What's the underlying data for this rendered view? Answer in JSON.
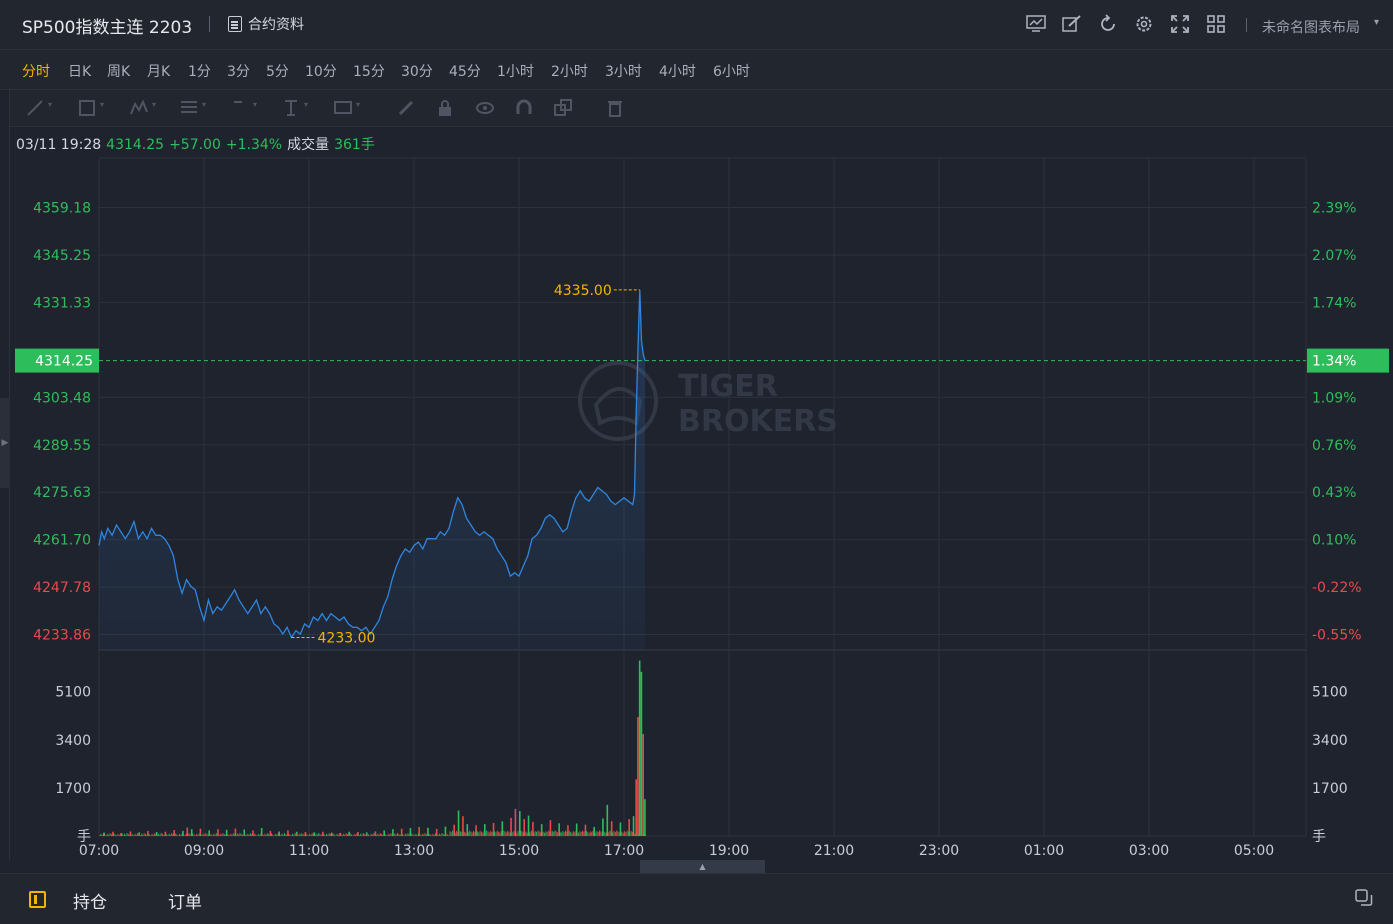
{
  "header": {
    "title": "SP500指数主连 2203",
    "contract_info": "合约资料",
    "layout_name": "未命名图表布局",
    "icons": [
      "indicator-icon",
      "draw-edit-icon",
      "refresh-icon",
      "settings-icon",
      "fullscreen-icon",
      "grid-layout-icon"
    ]
  },
  "periods": [
    "分时",
    "日K",
    "周K",
    "月K",
    "1分",
    "3分",
    "5分",
    "10分",
    "15分",
    "30分",
    "45分",
    "1小时",
    "2小时",
    "3小时",
    "4小时",
    "6小时"
  ],
  "active_period": "分时",
  "draw_tools": [
    "line-tool-icon",
    "rect-tool-icon",
    "pattern-tool-icon",
    "fib-tool-icon",
    "arrow-tool-icon",
    "text-tool-icon",
    "measure-tool-icon",
    "pencil-icon",
    "lock-icon",
    "eye-icon",
    "magnet-icon",
    "copy-layer-icon",
    "trash-icon"
  ],
  "info": {
    "datetime": "03/11 19:28",
    "price": "4314.25",
    "change": "+57.00",
    "change_pct": "+1.34%",
    "volume_label": "成交量",
    "volume": "361手"
  },
  "bottom": {
    "tab_positions": "持仓",
    "tab_orders": "订单"
  },
  "colors": {
    "up": "#2ebd5b",
    "down": "#e84a4a",
    "line": "#2f86e0",
    "marker": "#f4b400",
    "background": "#1f232e"
  },
  "chart_data": {
    "type": "line",
    "y_left_ticks": [
      "4359.18",
      "4345.25",
      "4331.33",
      "4303.48",
      "4289.55",
      "4275.63",
      "4261.70",
      "4247.78",
      "4233.86"
    ],
    "y_right_ticks": [
      "2.39%",
      "2.07%",
      "1.74%",
      "1.09%",
      "0.76%",
      "0.43%",
      "0.10%",
      "-0.22%",
      "-0.55%"
    ],
    "ylim": [
      4229.33,
      4373.11
    ],
    "prev_close": 4257.25,
    "x_ticks": [
      "07:00",
      "09:00",
      "11:00",
      "13:00",
      "15:00",
      "17:00",
      "19:00",
      "21:00",
      "23:00",
      "01:00",
      "03:00",
      "05:00"
    ],
    "last_price_label": "4314.25",
    "last_pct_label": "1.34%",
    "high_label": "4335.00",
    "low_label": "4233.00",
    "price_series": [
      [
        0,
        4260
      ],
      [
        3,
        4264
      ],
      [
        6,
        4262
      ],
      [
        10,
        4265
      ],
      [
        15,
        4263
      ],
      [
        20,
        4266
      ],
      [
        25,
        4264
      ],
      [
        30,
        4262
      ],
      [
        35,
        4264
      ],
      [
        40,
        4267
      ],
      [
        45,
        4262
      ],
      [
        50,
        4264
      ],
      [
        55,
        4262
      ],
      [
        60,
        4265
      ],
      [
        65,
        4263
      ],
      [
        70,
        4263
      ],
      [
        75,
        4262
      ],
      [
        80,
        4260
      ],
      [
        85,
        4257
      ],
      [
        90,
        4250
      ],
      [
        95,
        4246
      ],
      [
        100,
        4250
      ],
      [
        105,
        4248
      ],
      [
        110,
        4247
      ],
      [
        115,
        4242
      ],
      [
        120,
        4238
      ],
      [
        125,
        4244
      ],
      [
        130,
        4240
      ],
      [
        135,
        4242
      ],
      [
        140,
        4241
      ],
      [
        145,
        4243
      ],
      [
        150,
        4245
      ],
      [
        155,
        4247
      ],
      [
        160,
        4244
      ],
      [
        165,
        4242
      ],
      [
        170,
        4240
      ],
      [
        175,
        4242
      ],
      [
        180,
        4244
      ],
      [
        185,
        4240
      ],
      [
        190,
        4242
      ],
      [
        195,
        4240
      ],
      [
        200,
        4237
      ],
      [
        205,
        4236
      ],
      [
        210,
        4234
      ],
      [
        215,
        4236
      ],
      [
        220,
        4233
      ],
      [
        225,
        4235
      ],
      [
        230,
        4234
      ],
      [
        235,
        4237
      ],
      [
        240,
        4236
      ],
      [
        245,
        4239
      ],
      [
        250,
        4238
      ],
      [
        255,
        4240
      ],
      [
        260,
        4238
      ],
      [
        265,
        4240
      ],
      [
        270,
        4239
      ],
      [
        275,
        4238
      ],
      [
        280,
        4239
      ],
      [
        285,
        4237
      ],
      [
        290,
        4236
      ],
      [
        295,
        4236
      ],
      [
        300,
        4235
      ],
      [
        305,
        4236
      ],
      [
        310,
        4234
      ],
      [
        315,
        4236
      ],
      [
        320,
        4238
      ],
      [
        325,
        4242
      ],
      [
        330,
        4245
      ],
      [
        335,
        4250
      ],
      [
        340,
        4254
      ],
      [
        345,
        4257
      ],
      [
        350,
        4259
      ],
      [
        355,
        4258
      ],
      [
        360,
        4260
      ],
      [
        365,
        4261
      ],
      [
        370,
        4259
      ],
      [
        375,
        4262
      ],
      [
        380,
        4262
      ],
      [
        385,
        4262
      ],
      [
        390,
        4264
      ],
      [
        395,
        4263
      ],
      [
        400,
        4265
      ],
      [
        405,
        4270
      ],
      [
        410,
        4274
      ],
      [
        415,
        4272
      ],
      [
        420,
        4268
      ],
      [
        425,
        4266
      ],
      [
        430,
        4264
      ],
      [
        435,
        4263
      ],
      [
        440,
        4264
      ],
      [
        445,
        4263
      ],
      [
        450,
        4262
      ],
      [
        455,
        4259
      ],
      [
        460,
        4257
      ],
      [
        465,
        4255
      ],
      [
        470,
        4251
      ],
      [
        475,
        4252
      ],
      [
        480,
        4251
      ],
      [
        485,
        4254
      ],
      [
        490,
        4257
      ],
      [
        495,
        4262
      ],
      [
        500,
        4263
      ],
      [
        505,
        4265
      ],
      [
        510,
        4268
      ],
      [
        515,
        4269
      ],
      [
        520,
        4268
      ],
      [
        525,
        4266
      ],
      [
        530,
        4264
      ],
      [
        535,
        4265
      ],
      [
        540,
        4270
      ],
      [
        545,
        4274
      ],
      [
        550,
        4276
      ],
      [
        555,
        4274
      ],
      [
        560,
        4273
      ],
      [
        565,
        4275
      ],
      [
        570,
        4277
      ],
      [
        575,
        4276
      ],
      [
        580,
        4275
      ],
      [
        585,
        4273
      ],
      [
        590,
        4272
      ],
      [
        595,
        4273
      ],
      [
        600,
        4274
      ],
      [
        605,
        4273
      ],
      [
        610,
        4272
      ],
      [
        612,
        4275
      ],
      [
        614,
        4300
      ],
      [
        616,
        4318
      ],
      [
        618,
        4335
      ],
      [
        620,
        4320
      ],
      [
        622,
        4316
      ],
      [
        624,
        4314.25
      ]
    ],
    "volume_axis_ticks": [
      "5100",
      "3400",
      "1700"
    ],
    "volume_unit": "手",
    "volume_ylim": [
      0,
      6500
    ],
    "volume_series": [
      [
        5,
        120,
        "up"
      ],
      [
        15,
        150,
        "down"
      ],
      [
        25,
        100,
        "up"
      ],
      [
        35,
        160,
        "down"
      ],
      [
        45,
        130,
        "up"
      ],
      [
        55,
        180,
        "down"
      ],
      [
        65,
        140,
        "up"
      ],
      [
        75,
        150,
        "down"
      ],
      [
        85,
        210,
        "down"
      ],
      [
        95,
        180,
        "up"
      ],
      [
        100,
        300,
        "down"
      ],
      [
        105,
        240,
        "up"
      ],
      [
        115,
        260,
        "down"
      ],
      [
        125,
        200,
        "up"
      ],
      [
        135,
        240,
        "down"
      ],
      [
        145,
        220,
        "up"
      ],
      [
        155,
        260,
        "down"
      ],
      [
        165,
        230,
        "up"
      ],
      [
        175,
        200,
        "down"
      ],
      [
        185,
        280,
        "up"
      ],
      [
        195,
        180,
        "down"
      ],
      [
        205,
        160,
        "up"
      ],
      [
        215,
        200,
        "down"
      ],
      [
        225,
        150,
        "up"
      ],
      [
        235,
        140,
        "down"
      ],
      [
        245,
        130,
        "up"
      ],
      [
        255,
        150,
        "down"
      ],
      [
        265,
        120,
        "up"
      ],
      [
        275,
        110,
        "down"
      ],
      [
        285,
        150,
        "up"
      ],
      [
        295,
        140,
        "down"
      ],
      [
        305,
        130,
        "up"
      ],
      [
        315,
        160,
        "down"
      ],
      [
        325,
        200,
        "up"
      ],
      [
        335,
        240,
        "up"
      ],
      [
        345,
        260,
        "down"
      ],
      [
        355,
        280,
        "up"
      ],
      [
        365,
        320,
        "down"
      ],
      [
        375,
        290,
        "up"
      ],
      [
        385,
        250,
        "down"
      ],
      [
        395,
        330,
        "up"
      ],
      [
        405,
        400,
        "down"
      ],
      [
        410,
        900,
        "up"
      ],
      [
        415,
        700,
        "down"
      ],
      [
        420,
        420,
        "up"
      ],
      [
        430,
        380,
        "down"
      ],
      [
        440,
        420,
        "up"
      ],
      [
        450,
        460,
        "down"
      ],
      [
        460,
        520,
        "up"
      ],
      [
        470,
        640,
        "down"
      ],
      [
        475,
        960,
        "down"
      ],
      [
        480,
        880,
        "up"
      ],
      [
        485,
        600,
        "down"
      ],
      [
        490,
        720,
        "up"
      ],
      [
        495,
        500,
        "down"
      ],
      [
        505,
        420,
        "up"
      ],
      [
        515,
        560,
        "down"
      ],
      [
        525,
        450,
        "up"
      ],
      [
        535,
        380,
        "down"
      ],
      [
        545,
        440,
        "up"
      ],
      [
        555,
        400,
        "down"
      ],
      [
        565,
        320,
        "up"
      ],
      [
        575,
        620,
        "up"
      ],
      [
        580,
        1100,
        "up"
      ],
      [
        585,
        520,
        "down"
      ],
      [
        595,
        480,
        "up"
      ],
      [
        605,
        600,
        "down"
      ],
      [
        610,
        700,
        "up"
      ],
      [
        613,
        2000,
        "down"
      ],
      [
        615,
        4200,
        "down"
      ],
      [
        617,
        6200,
        "up"
      ],
      [
        619,
        5800,
        "up"
      ],
      [
        621,
        3600,
        "down"
      ],
      [
        623,
        1300,
        "up"
      ]
    ],
    "watermark": "TIGER BROKERS"
  }
}
